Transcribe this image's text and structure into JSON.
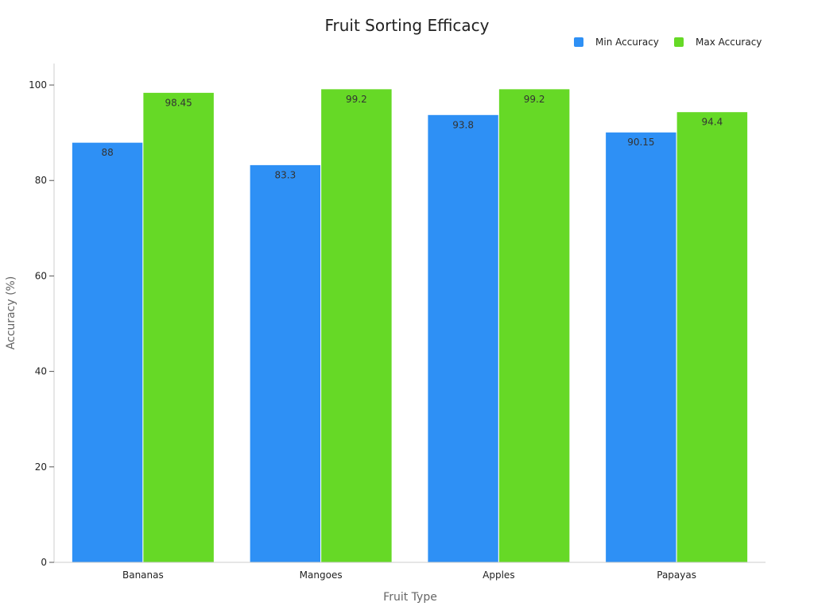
{
  "chart_data": {
    "type": "bar",
    "title": "Fruit Sorting Efficacy",
    "xlabel": "Fruit Type",
    "ylabel": "Accuracy (%)",
    "categories": [
      "Bananas",
      "Mangoes",
      "Apples",
      "Papayas"
    ],
    "series": [
      {
        "name": "Min Accuracy",
        "values": [
          88,
          83.3,
          93.8,
          90.15
        ],
        "color": "#2e90f5"
      },
      {
        "name": "Max Accuracy",
        "values": [
          98.45,
          99.2,
          99.2,
          94.4
        ],
        "color": "#66d926"
      }
    ],
    "data_labels": [
      [
        "88",
        "83.3",
        "93.8",
        "90.15"
      ],
      [
        "98.45",
        "99.2",
        "99.2",
        "94.4"
      ]
    ],
    "ylim": [
      0,
      104.5
    ],
    "yticks": [
      0,
      20,
      40,
      60,
      80,
      100
    ],
    "grid": false,
    "legend_position": "top-right"
  }
}
